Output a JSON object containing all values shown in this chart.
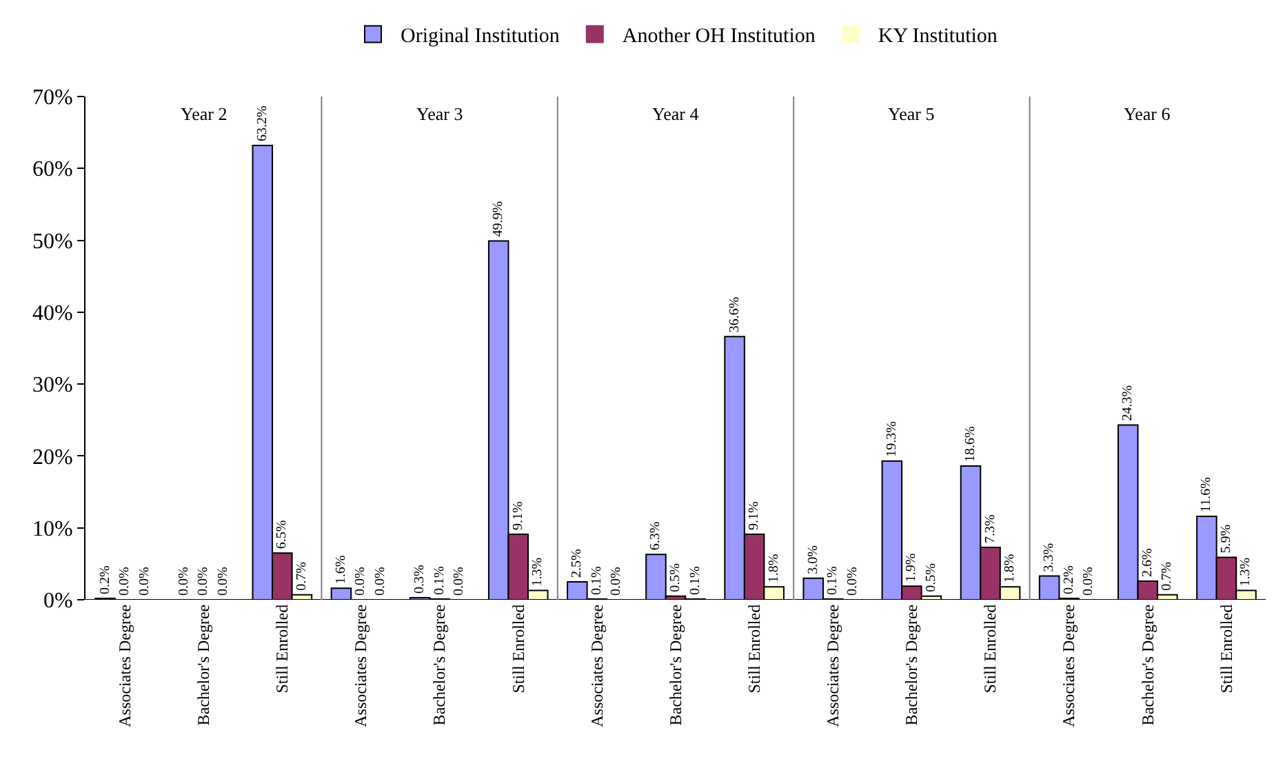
{
  "chart_data": {
    "type": "bar",
    "legend": "top",
    "ylim": [
      0,
      70
    ],
    "yticks": [
      {
        "value": 0,
        "label": "0%"
      },
      {
        "value": 10,
        "label": "10%"
      },
      {
        "value": 20,
        "label": "20%"
      },
      {
        "value": 30,
        "label": "30%"
      },
      {
        "value": 40,
        "label": "40%"
      },
      {
        "value": 50,
        "label": "50%"
      },
      {
        "value": 60,
        "label": "60%"
      },
      {
        "value": 70,
        "label": "70%"
      }
    ],
    "categories": [
      "Associates Degree",
      "Bachelor's Degree",
      "Still Enrolled",
      "Associates Degree",
      "Bachelor's Degree",
      "Still Enrolled",
      "Associates Degree",
      "Bachelor's Degree",
      "Still Enrolled",
      "Associates Degree",
      "Bachelor's Degree",
      "Still Enrolled",
      "Associates Degree",
      "Bachelor's Degree",
      "Still Enrolled"
    ],
    "annotations": [
      "Year 2",
      "Year 3",
      "Year 4",
      "Year 5",
      "Year 6"
    ],
    "series": [
      {
        "name": "Original Institution",
        "color": "#9999ff",
        "values": [
          0.2,
          0.0,
          63.2,
          1.6,
          0.3,
          49.9,
          2.5,
          6.3,
          36.6,
          3.0,
          19.3,
          18.6,
          3.3,
          24.3,
          11.6
        ],
        "value_labels": [
          "0.2%",
          "0.0%",
          "63.2%",
          "1.6%",
          "0.3%",
          "49.9%",
          "2.5%",
          "6.3%",
          "36.6%",
          "3.0%",
          "19.3%",
          "18.6%",
          "3.3%",
          "24.3%",
          "11.6%"
        ]
      },
      {
        "name": "Another OH Institution",
        "color": "#993366",
        "values": [
          0.0,
          0.0,
          6.5,
          0.0,
          0.1,
          9.1,
          0.1,
          0.5,
          9.1,
          0.1,
          1.9,
          7.3,
          0.2,
          2.6,
          5.9
        ],
        "value_labels": [
          "0.0%",
          "0.0%",
          "6.5%",
          "0.0%",
          "0.1%",
          "9.1%",
          "0.1%",
          "0.5%",
          "9.1%",
          "0.1%",
          "1.9%",
          "7.3%",
          "0.2%",
          "2.6%",
          "5.9%"
        ]
      },
      {
        "name": "KY Institution",
        "color": "#ffffcc",
        "values": [
          0.0,
          0.0,
          0.7,
          0.0,
          0.0,
          1.3,
          0.0,
          0.1,
          1.8,
          0.0,
          0.5,
          1.8,
          0.0,
          0.7,
          1.3
        ],
        "value_labels": [
          "0.0%",
          "0.0%",
          "0.7%",
          "0.0%",
          "0.0%",
          "1.3%",
          "0.0%",
          "0.1%",
          "1.8%",
          "0.0%",
          "0.5%",
          "1.8%",
          "0.0%",
          "0.7%",
          "1.3%"
        ]
      }
    ]
  }
}
